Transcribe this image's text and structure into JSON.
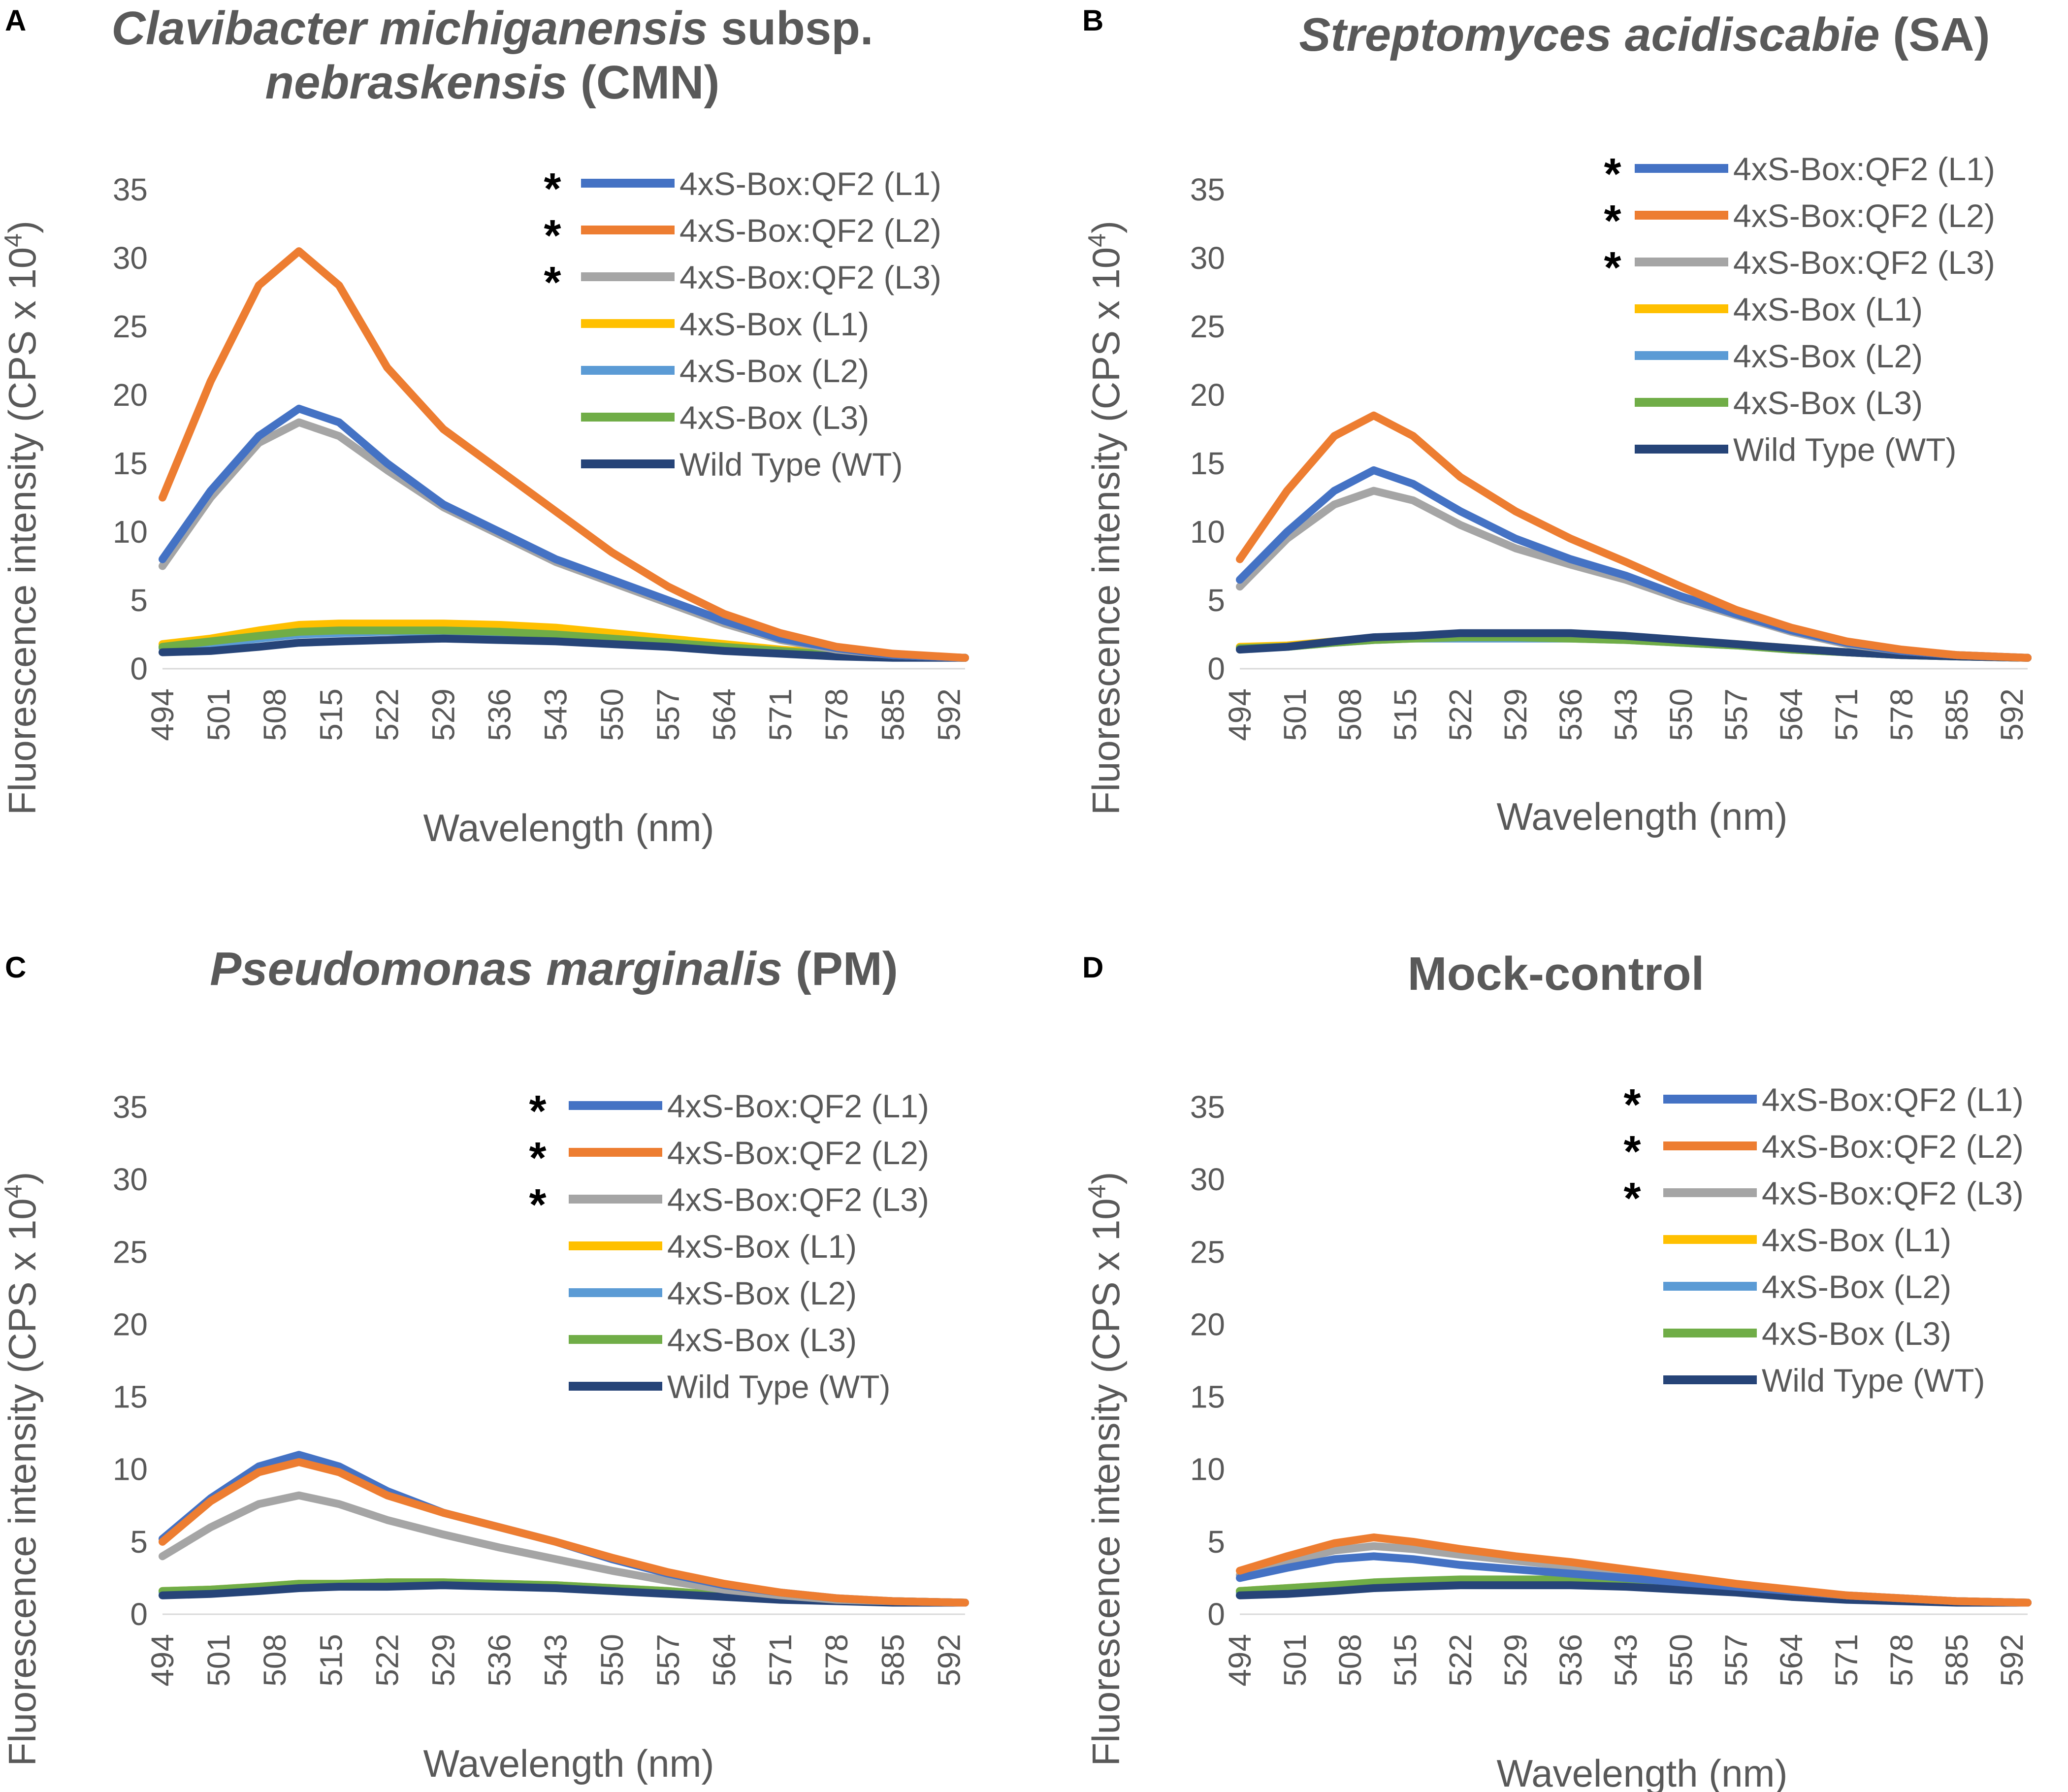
{
  "figure": {
    "series_names": [
      "4xS-Box:QF2 (L1)",
      "4xS-Box:QF2 (L2)",
      "4xS-Box:QF2 (L3)",
      "4xS-Box (L1)",
      "4xS-Box (L2)",
      "4xS-Box (L3)",
      "Wild Type (WT)"
    ],
    "series_colors": [
      "#4472C4",
      "#ED7D31",
      "#A5A5A5",
      "#FFC000",
      "#5B9BD5",
      "#70AD47",
      "#264478"
    ],
    "significance_mark": "*"
  },
  "chart_data": [
    {
      "panel": "A",
      "type": "line",
      "title_italic": "Clavibacter michiganensis",
      "title_rest": " subsp.",
      "title_line2_italic": "nebraskensis",
      "title_line2_rest": " (CMN)",
      "xlabel": "Wavelength (nm)",
      "ylabel_main": "Fluorescence intensity (CPS x 10",
      "ylabel_sup": "4",
      "ylabel_end": ")",
      "ylim": [
        0,
        35
      ],
      "yticks": [
        "0",
        "5",
        "10",
        "15",
        "20",
        "25",
        "30",
        "35"
      ],
      "xlim": [
        494,
        594
      ],
      "x_ticks": [
        "494",
        "501",
        "508",
        "515",
        "522",
        "529",
        "536",
        "543",
        "550",
        "557",
        "564",
        "571",
        "578",
        "585",
        "592"
      ],
      "x": [
        494,
        500,
        506,
        511,
        516,
        522,
        529,
        536,
        543,
        550,
        557,
        564,
        571,
        578,
        585,
        594
      ],
      "series": [
        {
          "name": "4xS-Box:QF2 (L1)",
          "starred": true,
          "values": [
            8.0,
            13.0,
            17.0,
            19.0,
            18.0,
            15.0,
            12.0,
            10.0,
            8.0,
            6.5,
            5.0,
            3.5,
            2.2,
            1.5,
            1.0,
            0.8
          ]
        },
        {
          "name": "4xS-Box:QF2 (L2)",
          "starred": true,
          "values": [
            12.5,
            21.0,
            28.0,
            30.5,
            28.0,
            22.0,
            17.5,
            14.5,
            11.5,
            8.5,
            6.0,
            4.0,
            2.6,
            1.6,
            1.1,
            0.8
          ]
        },
        {
          "name": "4xS-Box:QF2 (L3)",
          "starred": true,
          "values": [
            7.5,
            12.5,
            16.5,
            18.0,
            17.0,
            14.5,
            11.8,
            9.8,
            7.8,
            6.3,
            4.8,
            3.3,
            2.1,
            1.4,
            1.0,
            0.8
          ]
        },
        {
          "name": "4xS-Box (L1)",
          "starred": false,
          "values": [
            1.8,
            2.2,
            2.8,
            3.2,
            3.3,
            3.3,
            3.3,
            3.2,
            3.0,
            2.6,
            2.2,
            1.8,
            1.4,
            1.1,
            0.9,
            0.8
          ]
        },
        {
          "name": "4xS-Box (L2)",
          "starred": false,
          "values": [
            1.5,
            1.8,
            2.2,
            2.5,
            2.6,
            2.7,
            2.7,
            2.6,
            2.4,
            2.1,
            1.8,
            1.5,
            1.2,
            1.0,
            0.9,
            0.8
          ]
        },
        {
          "name": "4xS-Box (L3)",
          "starred": false,
          "values": [
            1.6,
            2.0,
            2.4,
            2.7,
            2.8,
            2.8,
            2.8,
            2.7,
            2.5,
            2.2,
            1.9,
            1.6,
            1.3,
            1.0,
            0.9,
            0.8
          ]
        },
        {
          "name": "Wild Type (WT)",
          "starred": false,
          "values": [
            1.2,
            1.3,
            1.6,
            1.9,
            2.0,
            2.1,
            2.2,
            2.1,
            2.0,
            1.8,
            1.6,
            1.3,
            1.1,
            0.9,
            0.8,
            0.8
          ]
        }
      ]
    },
    {
      "panel": "B",
      "type": "line",
      "title_italic": "Streptomyces acidiscabie",
      "title_rest": " (SA)",
      "title_line2_italic": "",
      "title_line2_rest": "",
      "xlabel": "Wavelength (nm)",
      "ylabel_main": "Fluorescence intensity (CPS x 10",
      "ylabel_sup": "4",
      "ylabel_end": ")",
      "ylim": [
        0,
        35
      ],
      "yticks": [
        "0",
        "5",
        "10",
        "15",
        "20",
        "25",
        "30",
        "35"
      ],
      "xlim": [
        494,
        594
      ],
      "x_ticks": [
        "494",
        "501",
        "508",
        "515",
        "522",
        "529",
        "536",
        "543",
        "550",
        "557",
        "564",
        "571",
        "578",
        "585",
        "592"
      ],
      "x": [
        494,
        500,
        506,
        511,
        516,
        522,
        529,
        536,
        543,
        550,
        557,
        564,
        571,
        578,
        585,
        594
      ],
      "series": [
        {
          "name": "4xS-Box:QF2 (L1)",
          "starred": true,
          "values": [
            6.5,
            10.0,
            13.0,
            14.5,
            13.5,
            11.5,
            9.5,
            8.0,
            6.8,
            5.3,
            4.0,
            2.8,
            1.9,
            1.3,
            1.0,
            0.8
          ]
        },
        {
          "name": "4xS-Box:QF2 (L2)",
          "starred": true,
          "values": [
            8.0,
            13.0,
            17.0,
            18.5,
            17.0,
            14.0,
            11.5,
            9.5,
            7.8,
            6.0,
            4.3,
            3.0,
            2.0,
            1.4,
            1.0,
            0.8
          ]
        },
        {
          "name": "4xS-Box:QF2 (L3)",
          "starred": true,
          "values": [
            6.0,
            9.5,
            12.0,
            13.0,
            12.3,
            10.5,
            8.8,
            7.6,
            6.5,
            5.1,
            3.9,
            2.7,
            1.8,
            1.3,
            1.0,
            0.8
          ]
        },
        {
          "name": "4xS-Box (L1)",
          "starred": false,
          "values": [
            1.6,
            1.7,
            2.0,
            2.2,
            2.3,
            2.3,
            2.3,
            2.3,
            2.2,
            2.0,
            1.8,
            1.5,
            1.2,
            1.0,
            0.9,
            0.8
          ]
        },
        {
          "name": "4xS-Box (L2)",
          "starred": false,
          "values": [
            1.5,
            1.6,
            1.9,
            2.1,
            2.2,
            2.2,
            2.2,
            2.2,
            2.1,
            1.9,
            1.7,
            1.4,
            1.2,
            1.0,
            0.9,
            0.8
          ]
        },
        {
          "name": "4xS-Box (L3)",
          "starred": false,
          "values": [
            1.5,
            1.6,
            1.9,
            2.1,
            2.2,
            2.3,
            2.3,
            2.2,
            2.1,
            1.9,
            1.7,
            1.4,
            1.2,
            1.0,
            0.9,
            0.8
          ]
        },
        {
          "name": "Wild Type (WT)",
          "starred": false,
          "values": [
            1.4,
            1.6,
            2.0,
            2.3,
            2.4,
            2.6,
            2.6,
            2.6,
            2.4,
            2.1,
            1.8,
            1.5,
            1.2,
            1.0,
            0.9,
            0.8
          ]
        }
      ]
    },
    {
      "panel": "C",
      "type": "line",
      "title_italic": "Pseudomonas marginalis",
      "title_rest": " (PM)",
      "title_line2_italic": "",
      "title_line2_rest": "",
      "xlabel": "Wavelength (nm)",
      "ylabel_main": "Fluorescence intensity (CPS x 10",
      "ylabel_sup": "4",
      "ylabel_end": ")",
      "ylim": [
        0,
        35
      ],
      "yticks": [
        "0",
        "5",
        "10",
        "15",
        "20",
        "25",
        "30",
        "35"
      ],
      "xlim": [
        494,
        594
      ],
      "x_ticks": [
        "494",
        "501",
        "508",
        "515",
        "522",
        "529",
        "536",
        "543",
        "550",
        "557",
        "564",
        "571",
        "578",
        "585",
        "592"
      ],
      "x": [
        494,
        500,
        506,
        511,
        516,
        522,
        529,
        536,
        543,
        550,
        557,
        564,
        571,
        578,
        585,
        594
      ],
      "series": [
        {
          "name": "4xS-Box:QF2 (L1)",
          "starred": true,
          "values": [
            5.2,
            8.0,
            10.2,
            11.0,
            10.2,
            8.5,
            7.0,
            6.0,
            5.0,
            3.8,
            2.8,
            2.0,
            1.5,
            1.1,
            0.9,
            0.8
          ]
        },
        {
          "name": "4xS-Box:QF2 (L2)",
          "starred": true,
          "values": [
            5.0,
            7.8,
            9.8,
            10.5,
            9.8,
            8.2,
            7.0,
            6.0,
            5.0,
            3.9,
            2.9,
            2.1,
            1.5,
            1.1,
            0.9,
            0.8
          ]
        },
        {
          "name": "4xS-Box:QF2 (L3)",
          "starred": true,
          "values": [
            4.0,
            6.0,
            7.6,
            8.2,
            7.6,
            6.5,
            5.5,
            4.6,
            3.8,
            3.0,
            2.3,
            1.7,
            1.3,
            1.0,
            0.9,
            0.8
          ]
        },
        {
          "name": "4xS-Box (L1)",
          "starred": false,
          "values": [
            1.6,
            1.7,
            1.9,
            2.1,
            2.1,
            2.2,
            2.2,
            2.1,
            2.0,
            1.8,
            1.6,
            1.3,
            1.1,
            1.0,
            0.9,
            0.8
          ]
        },
        {
          "name": "4xS-Box (L2)",
          "starred": false,
          "values": [
            1.5,
            1.6,
            1.8,
            2.0,
            2.0,
            2.1,
            2.1,
            2.0,
            1.9,
            1.7,
            1.5,
            1.3,
            1.1,
            1.0,
            0.9,
            0.8
          ]
        },
        {
          "name": "4xS-Box (L3)",
          "starred": false,
          "values": [
            1.6,
            1.7,
            1.9,
            2.1,
            2.1,
            2.2,
            2.2,
            2.1,
            2.0,
            1.8,
            1.6,
            1.3,
            1.1,
            1.0,
            0.9,
            0.8
          ]
        },
        {
          "name": "Wild Type (WT)",
          "starred": false,
          "values": [
            1.3,
            1.4,
            1.6,
            1.8,
            1.9,
            1.9,
            2.0,
            1.9,
            1.8,
            1.6,
            1.4,
            1.2,
            1.0,
            0.9,
            0.8,
            0.8
          ]
        }
      ]
    },
    {
      "panel": "D",
      "type": "line",
      "title_italic": "",
      "title_rest": "Mock-control",
      "title_line2_italic": "",
      "title_line2_rest": "",
      "xlabel": "Wavelength (nm)",
      "ylabel_main": "Fluorescence intensity (CPS x 10",
      "ylabel_sup": "4",
      "ylabel_end": ")",
      "ylim": [
        0,
        35
      ],
      "yticks": [
        "0",
        "5",
        "10",
        "15",
        "20",
        "25",
        "30",
        "35"
      ],
      "xlim": [
        494,
        594
      ],
      "x_ticks": [
        "494",
        "501",
        "508",
        "515",
        "522",
        "529",
        "536",
        "543",
        "550",
        "557",
        "564",
        "571",
        "578",
        "585",
        "592"
      ],
      "x": [
        494,
        500,
        506,
        511,
        516,
        522,
        529,
        536,
        543,
        550,
        557,
        564,
        571,
        578,
        585,
        594
      ],
      "series": [
        {
          "name": "4xS-Box:QF2 (L1)",
          "starred": true,
          "values": [
            2.5,
            3.2,
            3.8,
            4.0,
            3.8,
            3.4,
            3.1,
            2.8,
            2.5,
            2.2,
            1.9,
            1.6,
            1.3,
            1.1,
            0.9,
            0.8
          ]
        },
        {
          "name": "4xS-Box:QF2 (L2)",
          "starred": true,
          "values": [
            3.0,
            4.0,
            4.9,
            5.3,
            5.0,
            4.5,
            4.0,
            3.6,
            3.1,
            2.6,
            2.1,
            1.7,
            1.3,
            1.1,
            0.9,
            0.8
          ]
        },
        {
          "name": "4xS-Box:QF2 (L3)",
          "starred": true,
          "values": [
            2.7,
            3.6,
            4.4,
            4.7,
            4.5,
            4.1,
            3.7,
            3.3,
            2.8,
            2.4,
            2.0,
            1.6,
            1.3,
            1.1,
            0.9,
            0.8
          ]
        },
        {
          "name": "4xS-Box (L1)",
          "starred": false,
          "values": [
            1.6,
            1.8,
            2.0,
            2.1,
            2.2,
            2.3,
            2.3,
            2.3,
            2.2,
            2.0,
            1.8,
            1.5,
            1.2,
            1.0,
            0.9,
            0.8
          ]
        },
        {
          "name": "4xS-Box (L2)",
          "starred": false,
          "values": [
            1.5,
            1.7,
            1.9,
            2.0,
            2.1,
            2.2,
            2.2,
            2.2,
            2.1,
            1.9,
            1.7,
            1.4,
            1.2,
            1.0,
            0.9,
            0.8
          ]
        },
        {
          "name": "4xS-Box (L3)",
          "starred": false,
          "values": [
            1.6,
            1.8,
            2.0,
            2.2,
            2.3,
            2.4,
            2.4,
            2.4,
            2.3,
            2.1,
            1.8,
            1.5,
            1.2,
            1.0,
            0.9,
            0.8
          ]
        },
        {
          "name": "Wild Type (WT)",
          "starred": false,
          "values": [
            1.3,
            1.4,
            1.6,
            1.8,
            1.9,
            2.0,
            2.0,
            2.0,
            1.9,
            1.7,
            1.5,
            1.2,
            1.0,
            0.9,
            0.8,
            0.8
          ]
        }
      ]
    }
  ]
}
